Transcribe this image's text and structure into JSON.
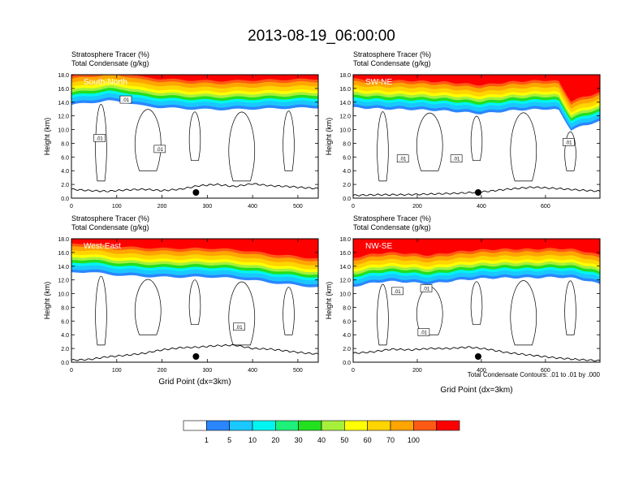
{
  "figure": {
    "title": "2013-08-19_06:00:00",
    "footnote": "Total Condensate Contours: .01 to .01 by .000"
  },
  "colorbar": {
    "colors": [
      "#ffffff",
      "#2a86ff",
      "#1ac8ff",
      "#00f5f0",
      "#1ef07a",
      "#22e01e",
      "#a6f03c",
      "#ffff00",
      "#ffd400",
      "#ffa500",
      "#ff5a14",
      "#ff0000"
    ],
    "labels": [
      "1",
      "5",
      "10",
      "20",
      "30",
      "40",
      "50",
      "60",
      "70",
      "100"
    ]
  },
  "chart_data": [
    {
      "type": "contour",
      "panel_label": "South-North",
      "title_lines": [
        "Stratosphere Tracer   (%)",
        "Total Condensate   (g/kg)"
      ],
      "xlabel": "",
      "ylabel": "Height (km)",
      "xlim": [
        0,
        545
      ],
      "ylim": [
        0,
        18
      ],
      "xticks": [
        "0",
        "100",
        "200",
        "300",
        "400",
        "500"
      ],
      "yticks": [
        "0.0",
        "2.0",
        "4.0",
        "6.0",
        "8.0",
        "10.0",
        "12.0",
        "14.0",
        "16.0",
        "18.0"
      ],
      "tropopause_km": [
        [
          0,
          14.2
        ],
        [
          40,
          14.5
        ],
        [
          80,
          14.8
        ],
        [
          120,
          14.6
        ],
        [
          160,
          14.0
        ],
        [
          200,
          13.8
        ],
        [
          260,
          13.6
        ],
        [
          330,
          13.5
        ],
        [
          400,
          13.6
        ],
        [
          470,
          13.7
        ],
        [
          545,
          13.8
        ]
      ],
      "terrain_km": [
        [
          0,
          1.3
        ],
        [
          40,
          1.1
        ],
        [
          80,
          1.0
        ],
        [
          120,
          1.2
        ],
        [
          160,
          1.3
        ],
        [
          200,
          1.1
        ],
        [
          240,
          1.3
        ],
        [
          280,
          1.8
        ],
        [
          320,
          2.0
        ],
        [
          360,
          1.7
        ],
        [
          400,
          2.1
        ],
        [
          440,
          1.8
        ],
        [
          480,
          1.7
        ],
        [
          520,
          1.5
        ],
        [
          545,
          1.4
        ]
      ],
      "marker_x": 275,
      "contour_labels": [
        {
          "text": ".01",
          "x": 120,
          "y": 14.2
        },
        {
          "text": ".01",
          "x": 62,
          "y": 8.6
        },
        {
          "text": ".01",
          "x": 195,
          "y": 7.0
        }
      ]
    },
    {
      "type": "contour",
      "panel_label": "SW-NE",
      "title_lines": [
        "Stratosphere Tracer   (%)",
        "Total Condensate   (g/kg)"
      ],
      "xlabel": "",
      "ylabel": "Height (km)",
      "xlim": [
        0,
        770
      ],
      "ylim": [
        0,
        18
      ],
      "xticks": [
        "0",
        "200",
        "400",
        "600"
      ],
      "yticks": [
        "0.0",
        "2.0",
        "4.0",
        "6.0",
        "8.0",
        "10.0",
        "12.0",
        "14.0",
        "16.0",
        "18.0"
      ],
      "tropopause_km": [
        [
          0,
          13.8
        ],
        [
          100,
          13.6
        ],
        [
          200,
          13.5
        ],
        [
          300,
          13.3
        ],
        [
          400,
          12.9
        ],
        [
          500,
          13.4
        ],
        [
          600,
          13.6
        ],
        [
          640,
          13.5
        ],
        [
          680,
          10.5
        ],
        [
          720,
          11.2
        ],
        [
          770,
          11.8
        ]
      ],
      "terrain_km": [
        [
          0,
          0.4
        ],
        [
          80,
          0.5
        ],
        [
          160,
          0.5
        ],
        [
          240,
          0.6
        ],
        [
          320,
          0.7
        ],
        [
          400,
          0.9
        ],
        [
          480,
          1.3
        ],
        [
          560,
          1.6
        ],
        [
          640,
          1.4
        ],
        [
          700,
          1.2
        ],
        [
          770,
          1.0
        ]
      ],
      "marker_x": 390,
      "contour_labels": [
        {
          "text": ".01",
          "x": 155,
          "y": 5.6
        },
        {
          "text": ".01",
          "x": 322,
          "y": 5.6
        },
        {
          "text": ".01",
          "x": 672,
          "y": 8.0
        }
      ]
    },
    {
      "type": "contour",
      "panel_label": "West-East",
      "title_lines": [
        "Stratosphere Tracer   (%)",
        "Total Condensate   (g/kg)"
      ],
      "xlabel": "Grid Point (dx=3km)",
      "ylabel": "Height (km)",
      "xlim": [
        0,
        545
      ],
      "ylim": [
        0,
        18
      ],
      "xticks": [
        "0",
        "100",
        "200",
        "300",
        "400",
        "500"
      ],
      "yticks": [
        "0.0",
        "2.0",
        "4.0",
        "6.0",
        "8.0",
        "10.0",
        "12.0",
        "14.0",
        "16.0",
        "18.0"
      ],
      "tropopause_km": [
        [
          0,
          13.6
        ],
        [
          40,
          13.8
        ],
        [
          80,
          13.4
        ],
        [
          120,
          13.2
        ],
        [
          160,
          13.1
        ],
        [
          200,
          13.0
        ],
        [
          260,
          13.0
        ],
        [
          320,
          13.0
        ],
        [
          380,
          12.7
        ],
        [
          440,
          12.2
        ],
        [
          500,
          11.8
        ],
        [
          545,
          11.5
        ]
      ],
      "terrain_km": [
        [
          0,
          0.3
        ],
        [
          40,
          0.4
        ],
        [
          80,
          0.8
        ],
        [
          120,
          1.0
        ],
        [
          160,
          1.3
        ],
        [
          200,
          1.8
        ],
        [
          240,
          2.1
        ],
        [
          280,
          2.2
        ],
        [
          320,
          2.4
        ],
        [
          360,
          2.5
        ],
        [
          400,
          2.0
        ],
        [
          440,
          1.9
        ],
        [
          480,
          1.6
        ],
        [
          520,
          1.3
        ],
        [
          545,
          1.2
        ]
      ],
      "marker_x": 275,
      "contour_labels": [
        {
          "text": ".01",
          "x": 370,
          "y": 5.0
        }
      ]
    },
    {
      "type": "contour",
      "panel_label": "NW-SE",
      "title_lines": [
        "Stratosphere Tracer   (%)",
        "Total Condensate   (g/kg)"
      ],
      "xlabel": "Grid Point (dx=3km)",
      "ylabel": "Height (km)",
      "xlim": [
        0,
        770
      ],
      "ylim": [
        0,
        18
      ],
      "xticks": [
        "0",
        "200",
        "400",
        "600"
      ],
      "yticks": [
        "0.0",
        "2.0",
        "4.0",
        "6.0",
        "8.0",
        "10.0",
        "12.0",
        "14.0",
        "16.0",
        "18.0"
      ],
      "tropopause_km": [
        [
          0,
          11.6
        ],
        [
          40,
          12.0
        ],
        [
          100,
          12.4
        ],
        [
          160,
          12.3
        ],
        [
          240,
          12.0
        ],
        [
          320,
          12.5
        ],
        [
          400,
          12.8
        ],
        [
          480,
          12.9
        ],
        [
          560,
          12.9
        ],
        [
          640,
          13.0
        ],
        [
          700,
          12.8
        ],
        [
          770,
          12.0
        ]
      ],
      "terrain_km": [
        [
          0,
          1.3
        ],
        [
          60,
          1.5
        ],
        [
          120,
          1.9
        ],
        [
          180,
          1.8
        ],
        [
          240,
          2.0
        ],
        [
          300,
          2.0
        ],
        [
          360,
          2.2
        ],
        [
          420,
          1.9
        ],
        [
          480,
          1.4
        ],
        [
          560,
          1.0
        ],
        [
          640,
          0.6
        ],
        [
          700,
          0.4
        ],
        [
          770,
          0.2
        ]
      ],
      "marker_x": 390,
      "contour_labels": [
        {
          "text": ".01",
          "x": 138,
          "y": 10.2
        },
        {
          "text": ".01",
          "x": 228,
          "y": 10.6
        },
        {
          "text": ".01",
          "x": 220,
          "y": 4.2
        }
      ]
    }
  ]
}
